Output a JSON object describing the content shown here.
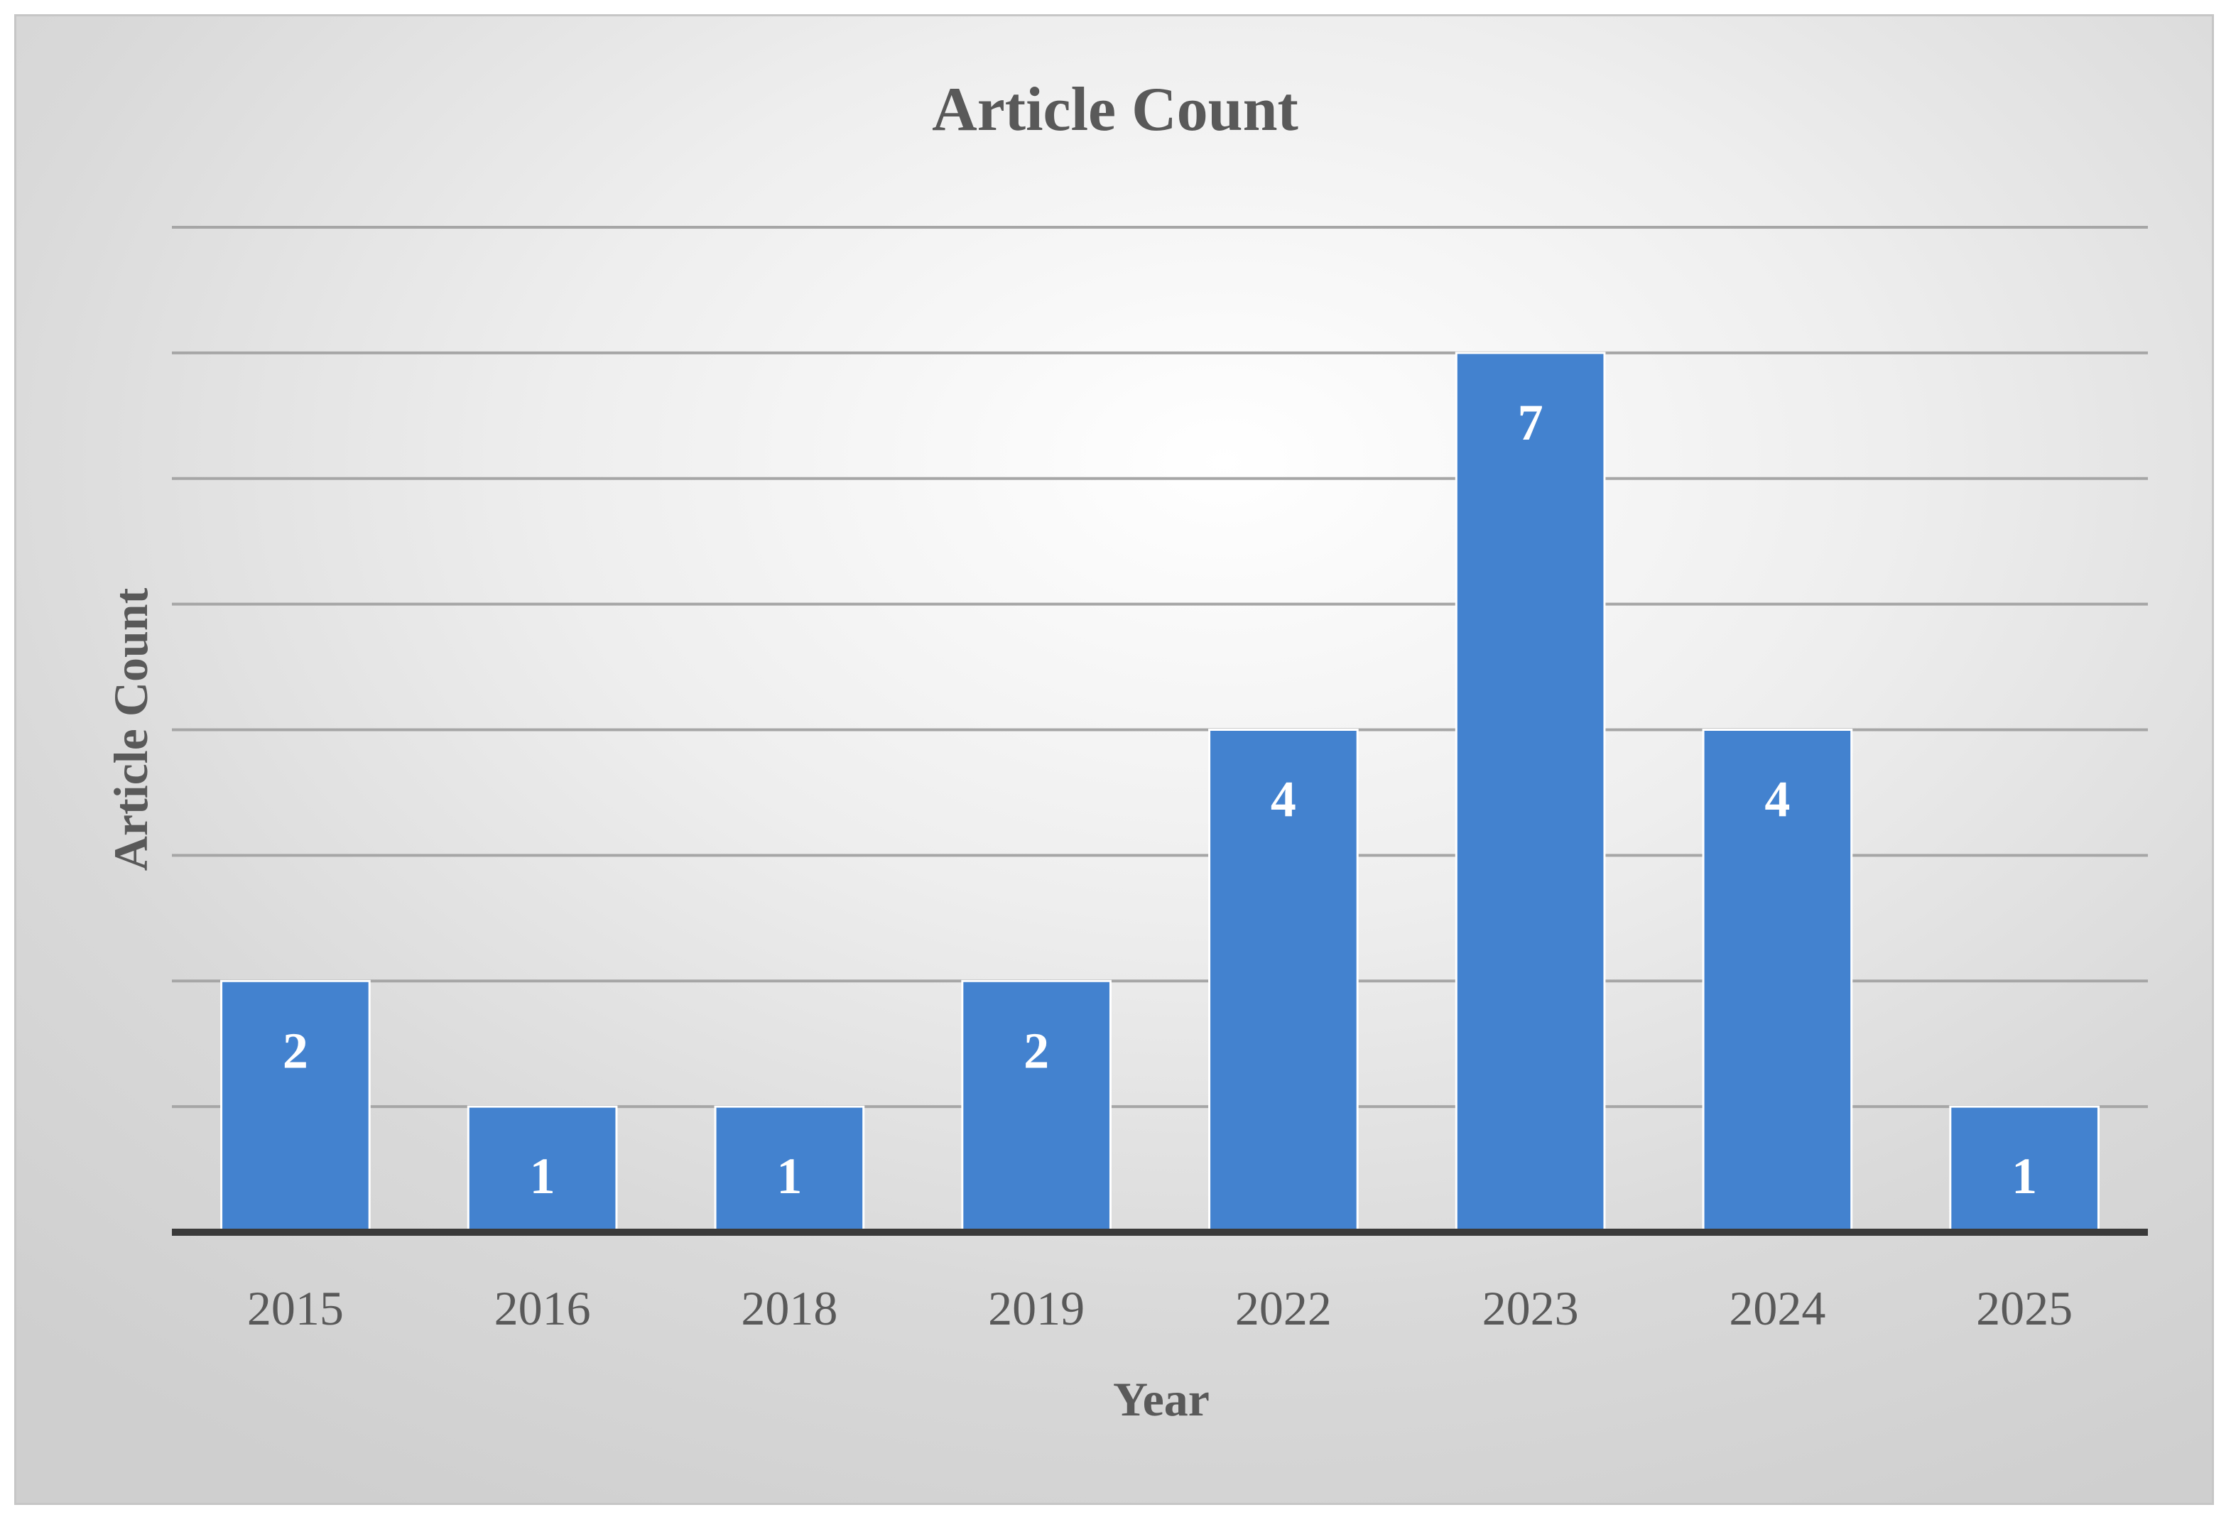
{
  "chart_data": {
    "type": "bar",
    "title": "Article Count",
    "xlabel": "Year",
    "ylabel": "Article Count",
    "categories": [
      "2015",
      "2016",
      "2018",
      "2019",
      "2022",
      "2023",
      "2024",
      "2025"
    ],
    "values": [
      2,
      1,
      1,
      2,
      4,
      7,
      4,
      1
    ],
    "ylim": [
      0,
      8
    ],
    "grid": true,
    "legend": "none",
    "y_tick_labels_shown": false,
    "data_labels": "inside-end",
    "colors": {
      "bar": "#4382cf",
      "bar_edge": "#ffffff",
      "grid": "#a6a6a6",
      "baseline": "#3a3a3a",
      "text": "#595959",
      "data_label": "#ffffff"
    }
  }
}
